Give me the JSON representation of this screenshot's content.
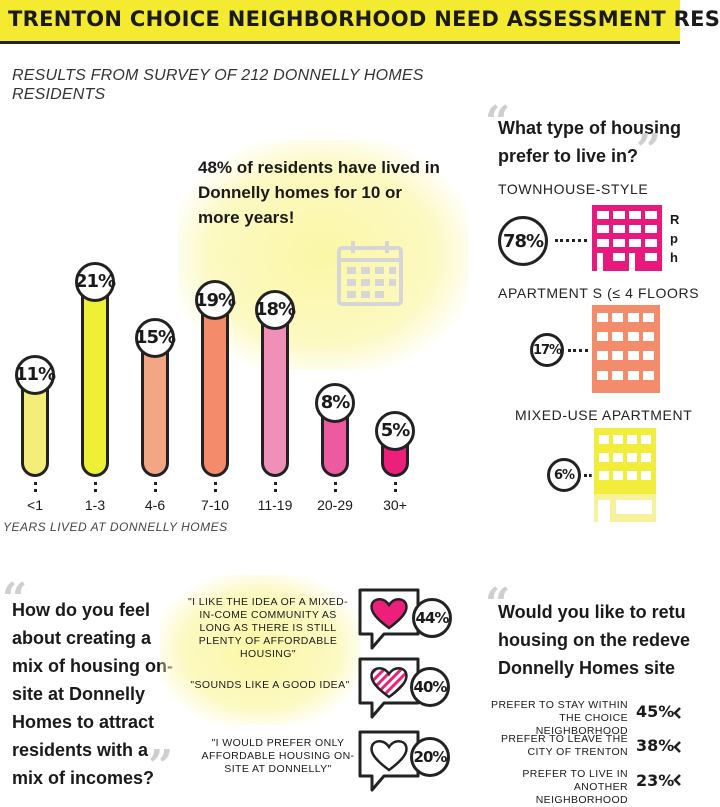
{
  "header": {
    "title": "TRENTON CHOICE NEIGHBORHOOD NEED ASSESSMENT RES"
  },
  "subtitle": "RESULTS FROM SURVEY OF 212 DONNELLY HOMES RESIDENTS",
  "callout": "48% of residents have lived in Donnelly homes for 10 or more years!",
  "icons": {
    "calendar": "calendar-icon",
    "heart": "heart-icon",
    "building": "building-icon"
  },
  "chart_data": {
    "type": "bar",
    "categories": [
      "<1",
      "1-3",
      "4-6",
      "7-10",
      "11-19",
      "20-29",
      "30+"
    ],
    "values": [
      11,
      21,
      15,
      19,
      18,
      8,
      5
    ],
    "value_labels": [
      "11%",
      "21%",
      "15%",
      "19%",
      "18%",
      "8%",
      "5%"
    ],
    "colors": [
      "#f3ee7a",
      "#eef036",
      "#f3a683",
      "#f48b6a",
      "#f08fb8",
      "#ee5aa0",
      "#ec1f7b"
    ],
    "xlabel": "YEARS LIVED AT DONNELLY HOMES",
    "ylabel": ""
  },
  "housing_type": {
    "question": "What type of housing",
    "question_line2": "prefer to live in?",
    "options": [
      {
        "label": "TOWNHOUSE-STYLE",
        "pct": "78%",
        "color": "#e8197c",
        "note": [
          "R",
          "p",
          "h"
        ]
      },
      {
        "label": "APARTMENT S (≤ 4 FLOORS",
        "pct": "17%",
        "color": "#f28c6b"
      },
      {
        "label": "MIXED-USE APARTMENT",
        "pct": "6%",
        "color": "#f2ec3b"
      }
    ]
  },
  "mixed_income": {
    "question": "How do you feel about creating a mix of housing on-site at Donnelly Homes to attract residents with a mix of incomes?",
    "responses": [
      {
        "text": "\"I LIKE THE IDEA OF A MIXED-IN-COME COMMUNITY AS LONG AS THERE IS STILL PLENTY OF AFFORDABLE HOUSING\"",
        "pct": "44%"
      },
      {
        "text": "\"SOUNDS LIKE A GOOD IDEA\"",
        "pct": "40%"
      },
      {
        "text": "\"I WOULD PREFER ONLY AFFORDABLE HOUSING ON-SITE AT DONNELLY\"",
        "pct": "20%"
      }
    ]
  },
  "return": {
    "question_l1": "Would you like to retu",
    "question_l2": "housing on the redeve",
    "question_l3": "Donnelly Homes  site",
    "options": [
      {
        "label": "PREFER TO STAY WITHIN THE CHOICE NEIGHBORHOOD",
        "pct": "45%"
      },
      {
        "label": "PREFER TO LEAVE THE CITY OF TRENTON",
        "pct": "38%"
      },
      {
        "label": "PREFER TO LIVE IN ANOTHER NEIGHBORHOOD",
        "pct": "23%"
      }
    ]
  }
}
